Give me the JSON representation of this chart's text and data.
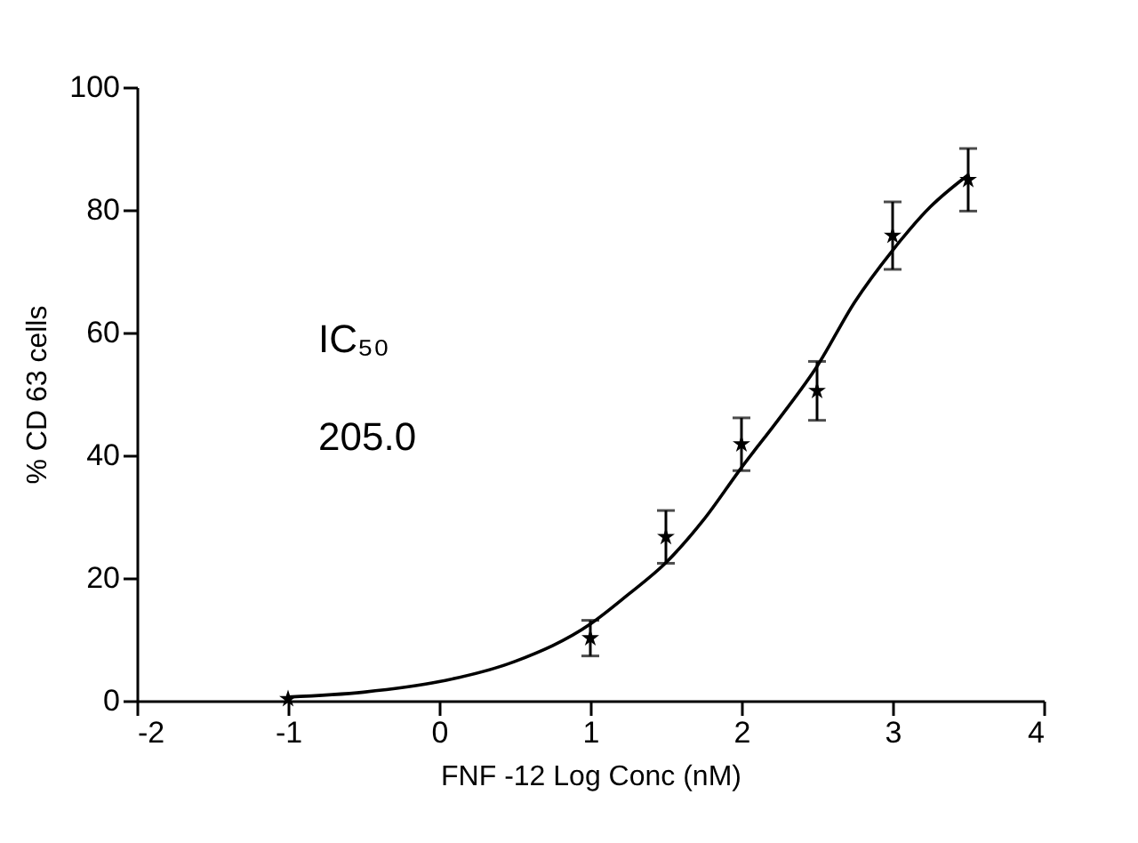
{
  "chart_data": {
    "type": "scatter",
    "xlabel": "FNF -12 Log Conc (nM)",
    "ylabel": "% CD 63 cells",
    "xlim": [
      -2,
      4
    ],
    "xticks": [
      -2,
      -1,
      0,
      1,
      2,
      3,
      4
    ],
    "ylim": [
      0,
      100
    ],
    "yticks": [
      0,
      20,
      40,
      60,
      80,
      100
    ],
    "grid": false,
    "series": [
      {
        "color": "#000000",
        "marker": "star",
        "x": [
          -1,
          1,
          1.5,
          2,
          2.5,
          3,
          3.5
        ],
        "values": [
          0.3,
          10.2,
          26.7,
          41.8,
          50.5,
          75.8,
          84.9
        ],
        "errors": [
          null,
          2.9,
          4.3,
          4.3,
          4.8,
          5.5,
          5.1
        ]
      },
      {
        "type": "line",
        "color": "#000000",
        "line_style": "solid",
        "marker": "none",
        "x": [
          -1,
          -0.5,
          0,
          0.5,
          1,
          1.25,
          1.5,
          1.75,
          2,
          2.25,
          2.5,
          2.75,
          3,
          3.25,
          3.5
        ],
        "values": [
          0.6,
          1.4,
          3.1,
          6.4,
          12.5,
          17.3,
          22.5,
          29.5,
          38,
          46,
          54.5,
          65,
          73.4,
          80.5,
          85.7
        ]
      }
    ],
    "annotations": [
      "IC₅₀",
      "205.0"
    ]
  }
}
